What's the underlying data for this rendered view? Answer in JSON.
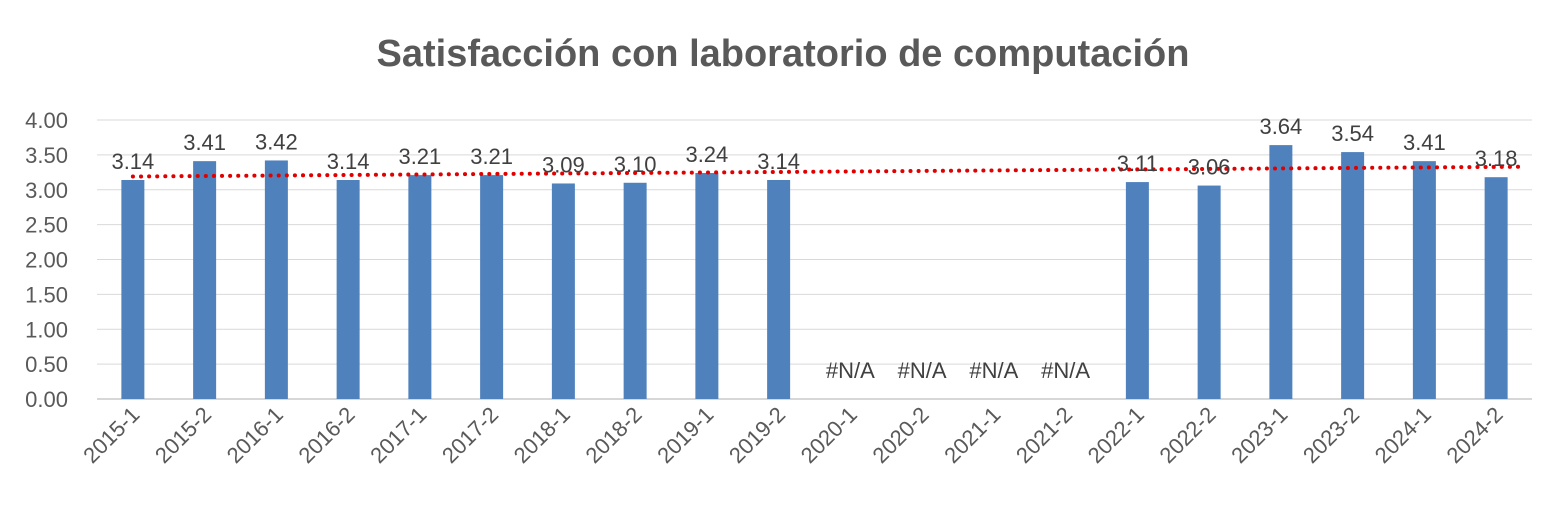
{
  "chart_data": {
    "type": "bar",
    "title": "Satisfacción con laboratorio de computación",
    "categories": [
      "2015-1",
      "2015-2",
      "2016-1",
      "2016-2",
      "2017-1",
      "2017-2",
      "2018-1",
      "2018-2",
      "2019-1",
      "2019-2",
      "2020-1",
      "2020-2",
      "2021-1",
      "2021-2",
      "2022-1",
      "2022-2",
      "2023-1",
      "2023-2",
      "2024-1",
      "2024-2"
    ],
    "values": [
      3.14,
      3.41,
      3.42,
      3.14,
      3.21,
      3.21,
      3.09,
      3.1,
      3.24,
      3.14,
      null,
      null,
      null,
      null,
      3.11,
      3.06,
      3.64,
      3.54,
      3.41,
      3.18
    ],
    "data_labels": [
      "3.14",
      "3.41",
      "3.42",
      "3.14",
      "3.21",
      "3.21",
      "3.09",
      "3.10",
      "3.24",
      "3.14",
      "#N/A",
      "#N/A",
      "#N/A",
      "#N/A",
      "3.11",
      "3.06",
      "3.64",
      "3.54",
      "3.41",
      "3.18"
    ],
    "yticks": [
      "0.00",
      "0.50",
      "1.00",
      "1.50",
      "2.00",
      "2.50",
      "3.00",
      "3.50",
      "4.00"
    ],
    "ylim": [
      0,
      4
    ],
    "grid": true,
    "trendline": {
      "type": "linear",
      "style": "dotted",
      "start": 3.19,
      "end": 3.33
    },
    "colors": {
      "bar": "#4f81bd",
      "trend": "#e00000",
      "grid": "#d9d9d9",
      "text": "#595959"
    }
  }
}
